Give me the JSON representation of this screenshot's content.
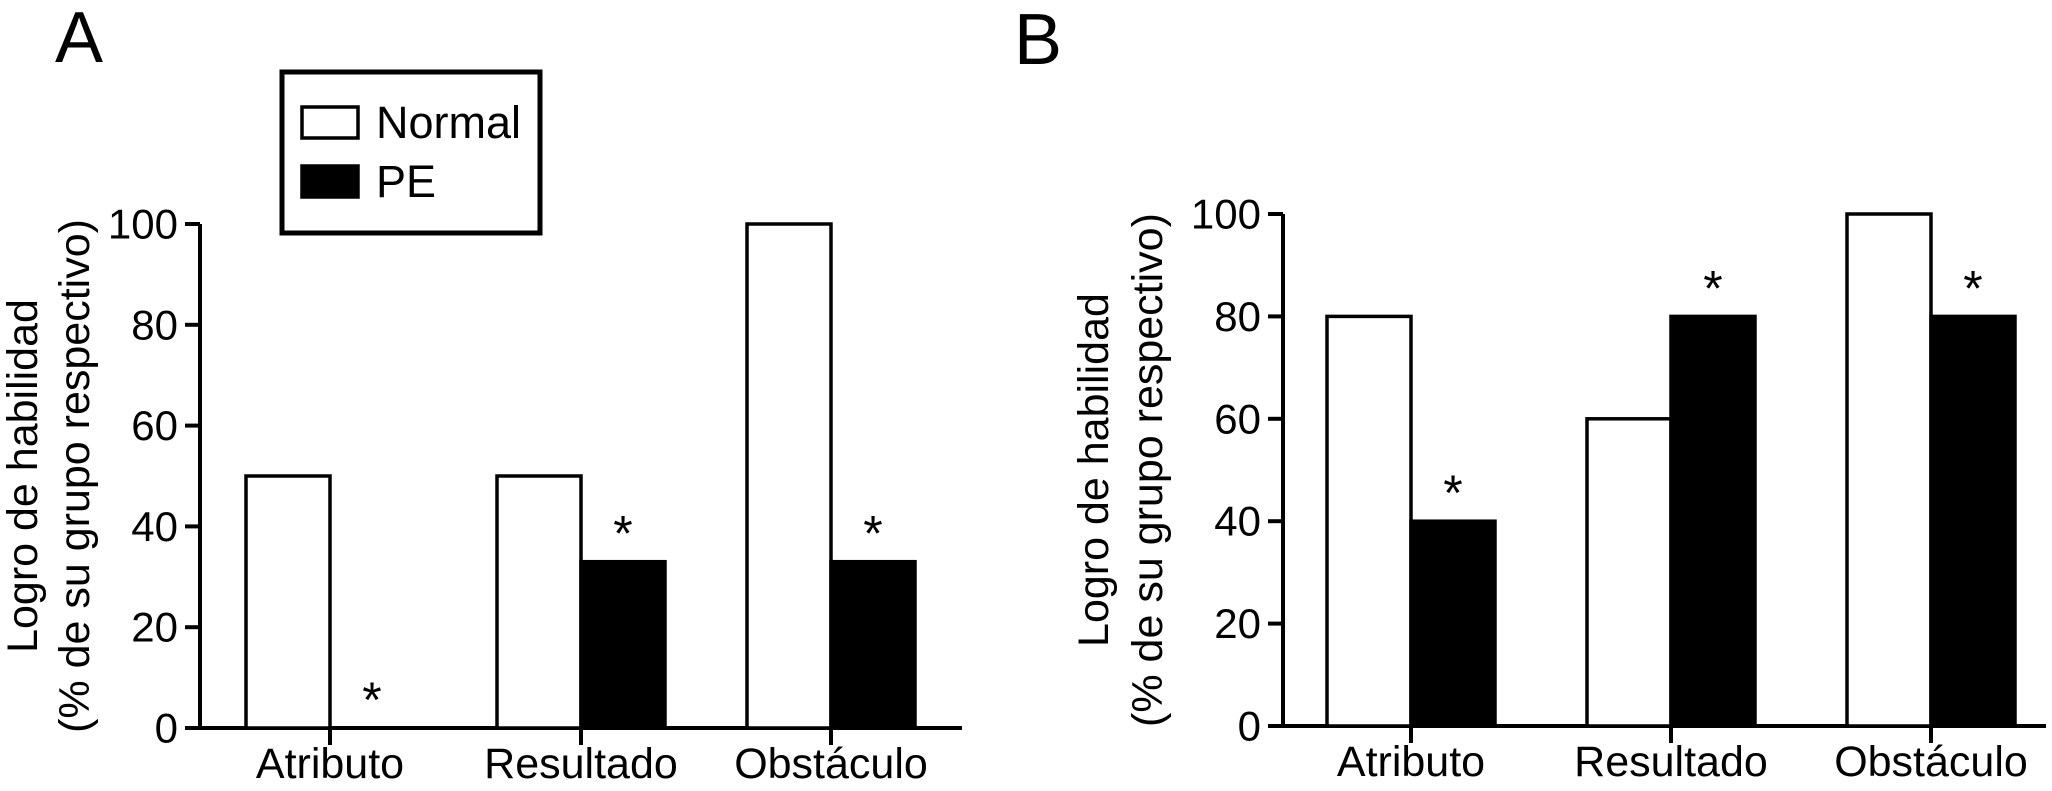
{
  "figure": {
    "background": "#ffffff",
    "ink": "#000000"
  },
  "chart_data": [
    {
      "type": "bar",
      "panel_label": "A",
      "categories": [
        "Atributo",
        "Resultado",
        "Obstáculo"
      ],
      "series": [
        {
          "name": "Normal",
          "fill": "#ffffff",
          "values": [
            50,
            50,
            100
          ]
        },
        {
          "name": "PE",
          "fill": "#000000",
          "values": [
            0,
            33,
            33
          ]
        }
      ],
      "significance_marker": "*",
      "pe_bar_significant": [
        true,
        true,
        true
      ],
      "ylabel_lines": [
        "Logro de habilidad",
        "(% de su grupo respectivo)"
      ],
      "yticks": [
        0,
        20,
        40,
        60,
        80,
        100
      ],
      "ylim": [
        0,
        100
      ],
      "grid": false,
      "legend": {
        "visible": true,
        "position": "top-left-inside",
        "entries": [
          "Normal",
          "PE"
        ]
      }
    },
    {
      "type": "bar",
      "panel_label": "B",
      "categories": [
        "Atributo",
        "Resultado",
        "Obstáculo"
      ],
      "series": [
        {
          "name": "Normal",
          "fill": "#ffffff",
          "values": [
            80,
            60,
            100
          ]
        },
        {
          "name": "PE",
          "fill": "#000000",
          "values": [
            40,
            80,
            80
          ]
        }
      ],
      "significance_marker": "*",
      "pe_bar_significant": [
        true,
        true,
        true
      ],
      "ylabel_lines": [
        "Logro de habilidad",
        "(% de su grupo respectivo)"
      ],
      "yticks": [
        0,
        20,
        40,
        60,
        80,
        100
      ],
      "ylim": [
        0,
        100
      ],
      "grid": false,
      "legend": {
        "visible": false,
        "entries": [
          "Normal",
          "PE"
        ]
      }
    }
  ]
}
